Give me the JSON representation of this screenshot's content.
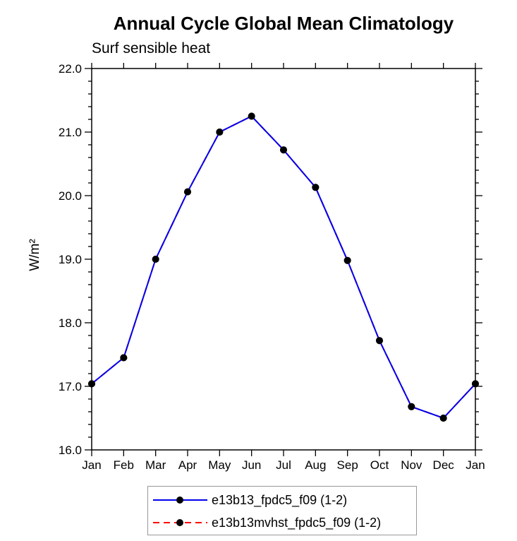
{
  "title": "Annual Cycle Global Mean Climatology",
  "subtitle": "Surf sensible heat",
  "chart_data": {
    "type": "line",
    "x_categories": [
      "Jan",
      "Feb",
      "Mar",
      "Apr",
      "May",
      "Jun",
      "Jul",
      "Aug",
      "Sep",
      "Oct",
      "Nov",
      "Dec",
      "Jan"
    ],
    "ylabel": "W/m²",
    "ylim": [
      16.0,
      22.0
    ],
    "ytick_interval": 1.0,
    "yminor_interval": 0.2,
    "ytick_labels": [
      "16.0",
      "17.0",
      "18.0",
      "19.0",
      "20.0",
      "21.0",
      "22.0"
    ],
    "grid": false,
    "legend_position": "bottom",
    "axis_color": "#000000",
    "series": [
      {
        "name": "e13b13_fpdc5_f09 (1-2)",
        "color": "#0000ee",
        "style": "solid",
        "marker": "filled-circle",
        "marker_color": "#000000",
        "values": [
          17.04,
          17.45,
          19.0,
          20.06,
          21.0,
          21.25,
          20.72,
          20.13,
          18.98,
          17.72,
          16.68,
          16.5,
          17.04
        ]
      },
      {
        "name": "e13b13mvhst_fpdc5_f09 (1-2)",
        "color": "#ff0000",
        "style": "dashed",
        "marker": "filled-circle",
        "marker_color": "#000000",
        "values": [
          17.04,
          17.45,
          19.0,
          20.06,
          21.0,
          21.25,
          20.72,
          20.13,
          18.98,
          17.72,
          16.68,
          16.5,
          17.04
        ]
      }
    ]
  }
}
